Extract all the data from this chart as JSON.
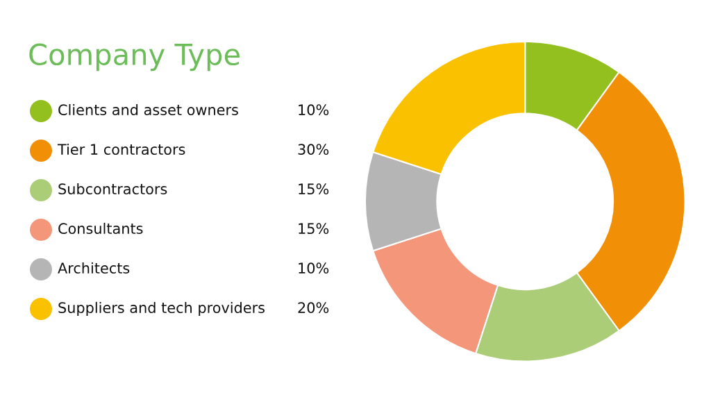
{
  "chart_data": {
    "type": "donut",
    "title": "Company Type",
    "categories": [
      "Clients and asset owners",
      "Tier 1 contractors",
      "Subcontractors",
      "Consultants",
      "Architects",
      "Suppliers and tech providers"
    ],
    "values": [
      10,
      30,
      15,
      15,
      10,
      20
    ],
    "value_labels": [
      "10%",
      "30%",
      "15%",
      "15%",
      "10%",
      "20%"
    ],
    "colors": [
      "#93c01f",
      "#f18f06",
      "#abcd78",
      "#f4967a",
      "#b5b5b5",
      "#f9c100"
    ],
    "legend": "left"
  }
}
